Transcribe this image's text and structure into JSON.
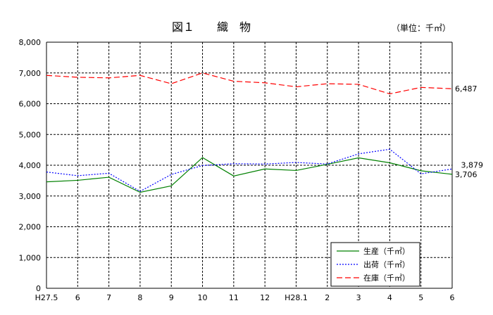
{
  "chart_data": {
    "type": "line",
    "title": "図１　　織　物",
    "unit": "（単位：千㎡）",
    "categories": [
      "H27.5",
      "6",
      "7",
      "8",
      "9",
      "10",
      "11",
      "12",
      "H28.1",
      "2",
      "3",
      "4",
      "5",
      "6"
    ],
    "ylim": [
      0,
      8000
    ],
    "yticks": [
      0,
      1000,
      2000,
      3000,
      4000,
      5000,
      6000,
      7000,
      8000
    ],
    "ytick_labels": [
      "0",
      "1,000",
      "2,000",
      "3,000",
      "4,000",
      "5,000",
      "6,000",
      "7,000",
      "8,000"
    ],
    "grid": true,
    "legend_position": "bottom-right",
    "series": [
      {
        "name": "生産（千㎡）",
        "color": "#008000",
        "dash": "solid",
        "values": [
          3460,
          3510,
          3610,
          3120,
          3330,
          4250,
          3650,
          3880,
          3830,
          4030,
          4240,
          4080,
          3820,
          3706
        ]
      },
      {
        "name": "出荷（千㎡）",
        "color": "#0000ff",
        "dash": "dotted",
        "values": [
          3780,
          3660,
          3740,
          3150,
          3700,
          3990,
          4050,
          4040,
          4090,
          4040,
          4370,
          4520,
          3720,
          3879
        ]
      },
      {
        "name": "在庫（千㎡）",
        "color": "#ff0000",
        "dash": "dashed",
        "values": [
          6920,
          6860,
          6840,
          6920,
          6650,
          7000,
          6730,
          6680,
          6550,
          6650,
          6630,
          6320,
          6530,
          6487
        ]
      }
    ],
    "end_labels": [
      "3,706",
      "3,879",
      "6,487"
    ]
  }
}
